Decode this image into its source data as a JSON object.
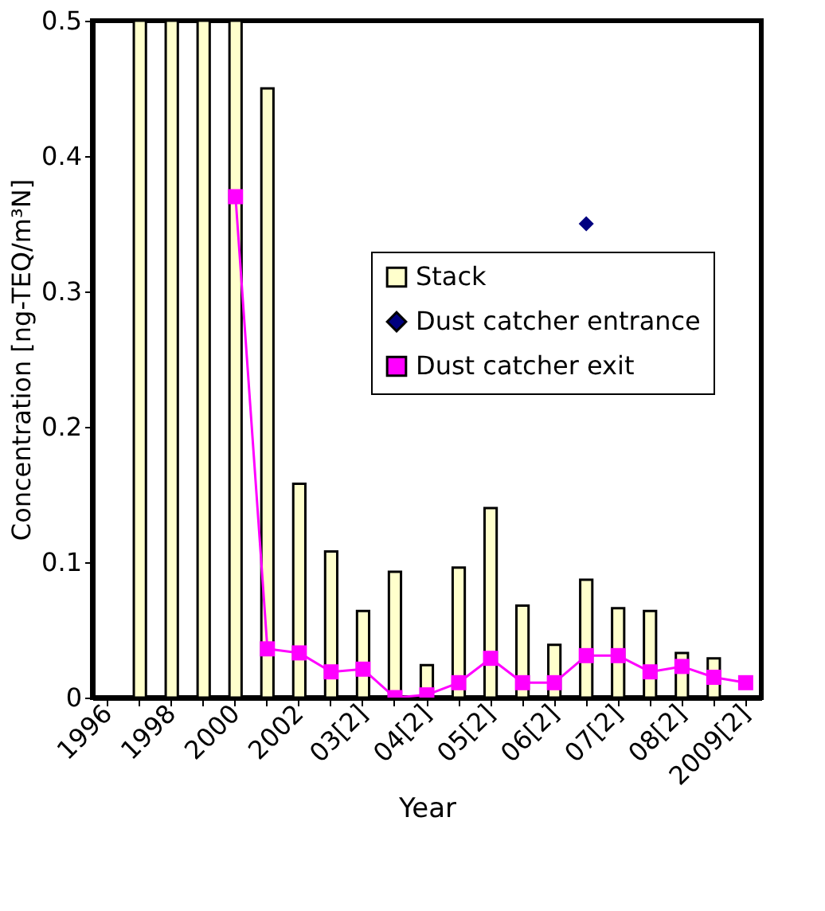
{
  "chart_data": {
    "type": "bar",
    "xlabel": "Year",
    "ylabel": "Concentration [ng-TEQ/m³N]",
    "categories": [
      "1996",
      null,
      "1998",
      null,
      "2000",
      null,
      "2002",
      null,
      "03[2]",
      null,
      "04[2]",
      null,
      "05[2]",
      null,
      "06[2]",
      null,
      "07[2]",
      null,
      "08[2]",
      null,
      "2009[2]"
    ],
    "series": [
      {
        "name": "Stack",
        "color": "#ffffcc",
        "values": [
          null,
          0.5,
          0.5,
          0.5,
          0.5,
          0.45,
          0.158,
          0.108,
          0.064,
          0.093,
          0.024,
          0.096,
          0.14,
          0.068,
          0.039,
          0.087,
          0.066,
          0.064,
          0.033,
          0.029,
          null
        ]
      },
      {
        "name": "Dust catcher entrance",
        "type": "line",
        "color": "#000080",
        "marker": "diamond",
        "values": [
          null,
          null,
          null,
          null,
          null,
          null,
          null,
          null,
          null,
          null,
          null,
          null,
          null,
          null,
          null,
          0.35,
          null,
          null,
          null,
          null,
          null
        ]
      },
      {
        "name": "Dust catcher exit",
        "type": "line",
        "color": "#ff00ff",
        "marker": "square",
        "values": [
          null,
          null,
          null,
          null,
          0.37,
          0.036,
          0.033,
          0.019,
          0.021,
          0.0,
          0.002,
          0.011,
          0.029,
          0.011,
          0.011,
          0.031,
          0.031,
          0.019,
          0.023,
          0.015,
          0.011
        ]
      }
    ],
    "ylim": [
      0,
      0.5
    ],
    "yticks": [
      0,
      0.1,
      0.2,
      0.3,
      0.4,
      0.5
    ],
    "grid": false,
    "legend": "right"
  }
}
